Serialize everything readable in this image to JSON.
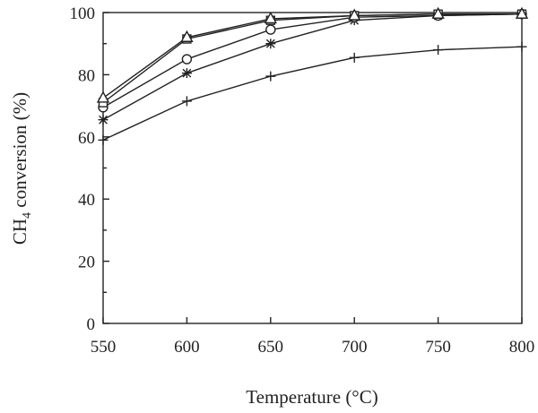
{
  "chart_data": {
    "type": "line",
    "title": "",
    "xlabel": "Temperature (°C)",
    "ylabel_main": "CH",
    "ylabel_sub": "4",
    "ylabel_rest": " conversion (%)",
    "x": [
      550,
      600,
      650,
      700,
      750,
      800
    ],
    "xlim": [
      550,
      800
    ],
    "ylim": [
      0,
      100
    ],
    "x_ticks": [
      550,
      600,
      650,
      700,
      750,
      800
    ],
    "y_ticks": [
      0,
      20,
      40,
      60,
      80,
      100
    ],
    "grid": false,
    "series": [
      {
        "marker": "plus",
        "values": [
          59,
          71.5,
          79.5,
          85.5,
          88,
          89
        ]
      },
      {
        "marker": "asterisk",
        "values": [
          65.5,
          80.5,
          90,
          97.5,
          99,
          99.5
        ]
      },
      {
        "marker": "circle",
        "values": [
          69.5,
          85,
          94.5,
          98.5,
          99,
          99.5
        ]
      },
      {
        "marker": "square",
        "values": [
          71,
          91.5,
          97.5,
          99,
          99.5,
          99.5
        ]
      },
      {
        "marker": "triangle",
        "values": [
          72.5,
          92,
          98,
          99,
          99.5,
          99.5
        ]
      }
    ]
  }
}
